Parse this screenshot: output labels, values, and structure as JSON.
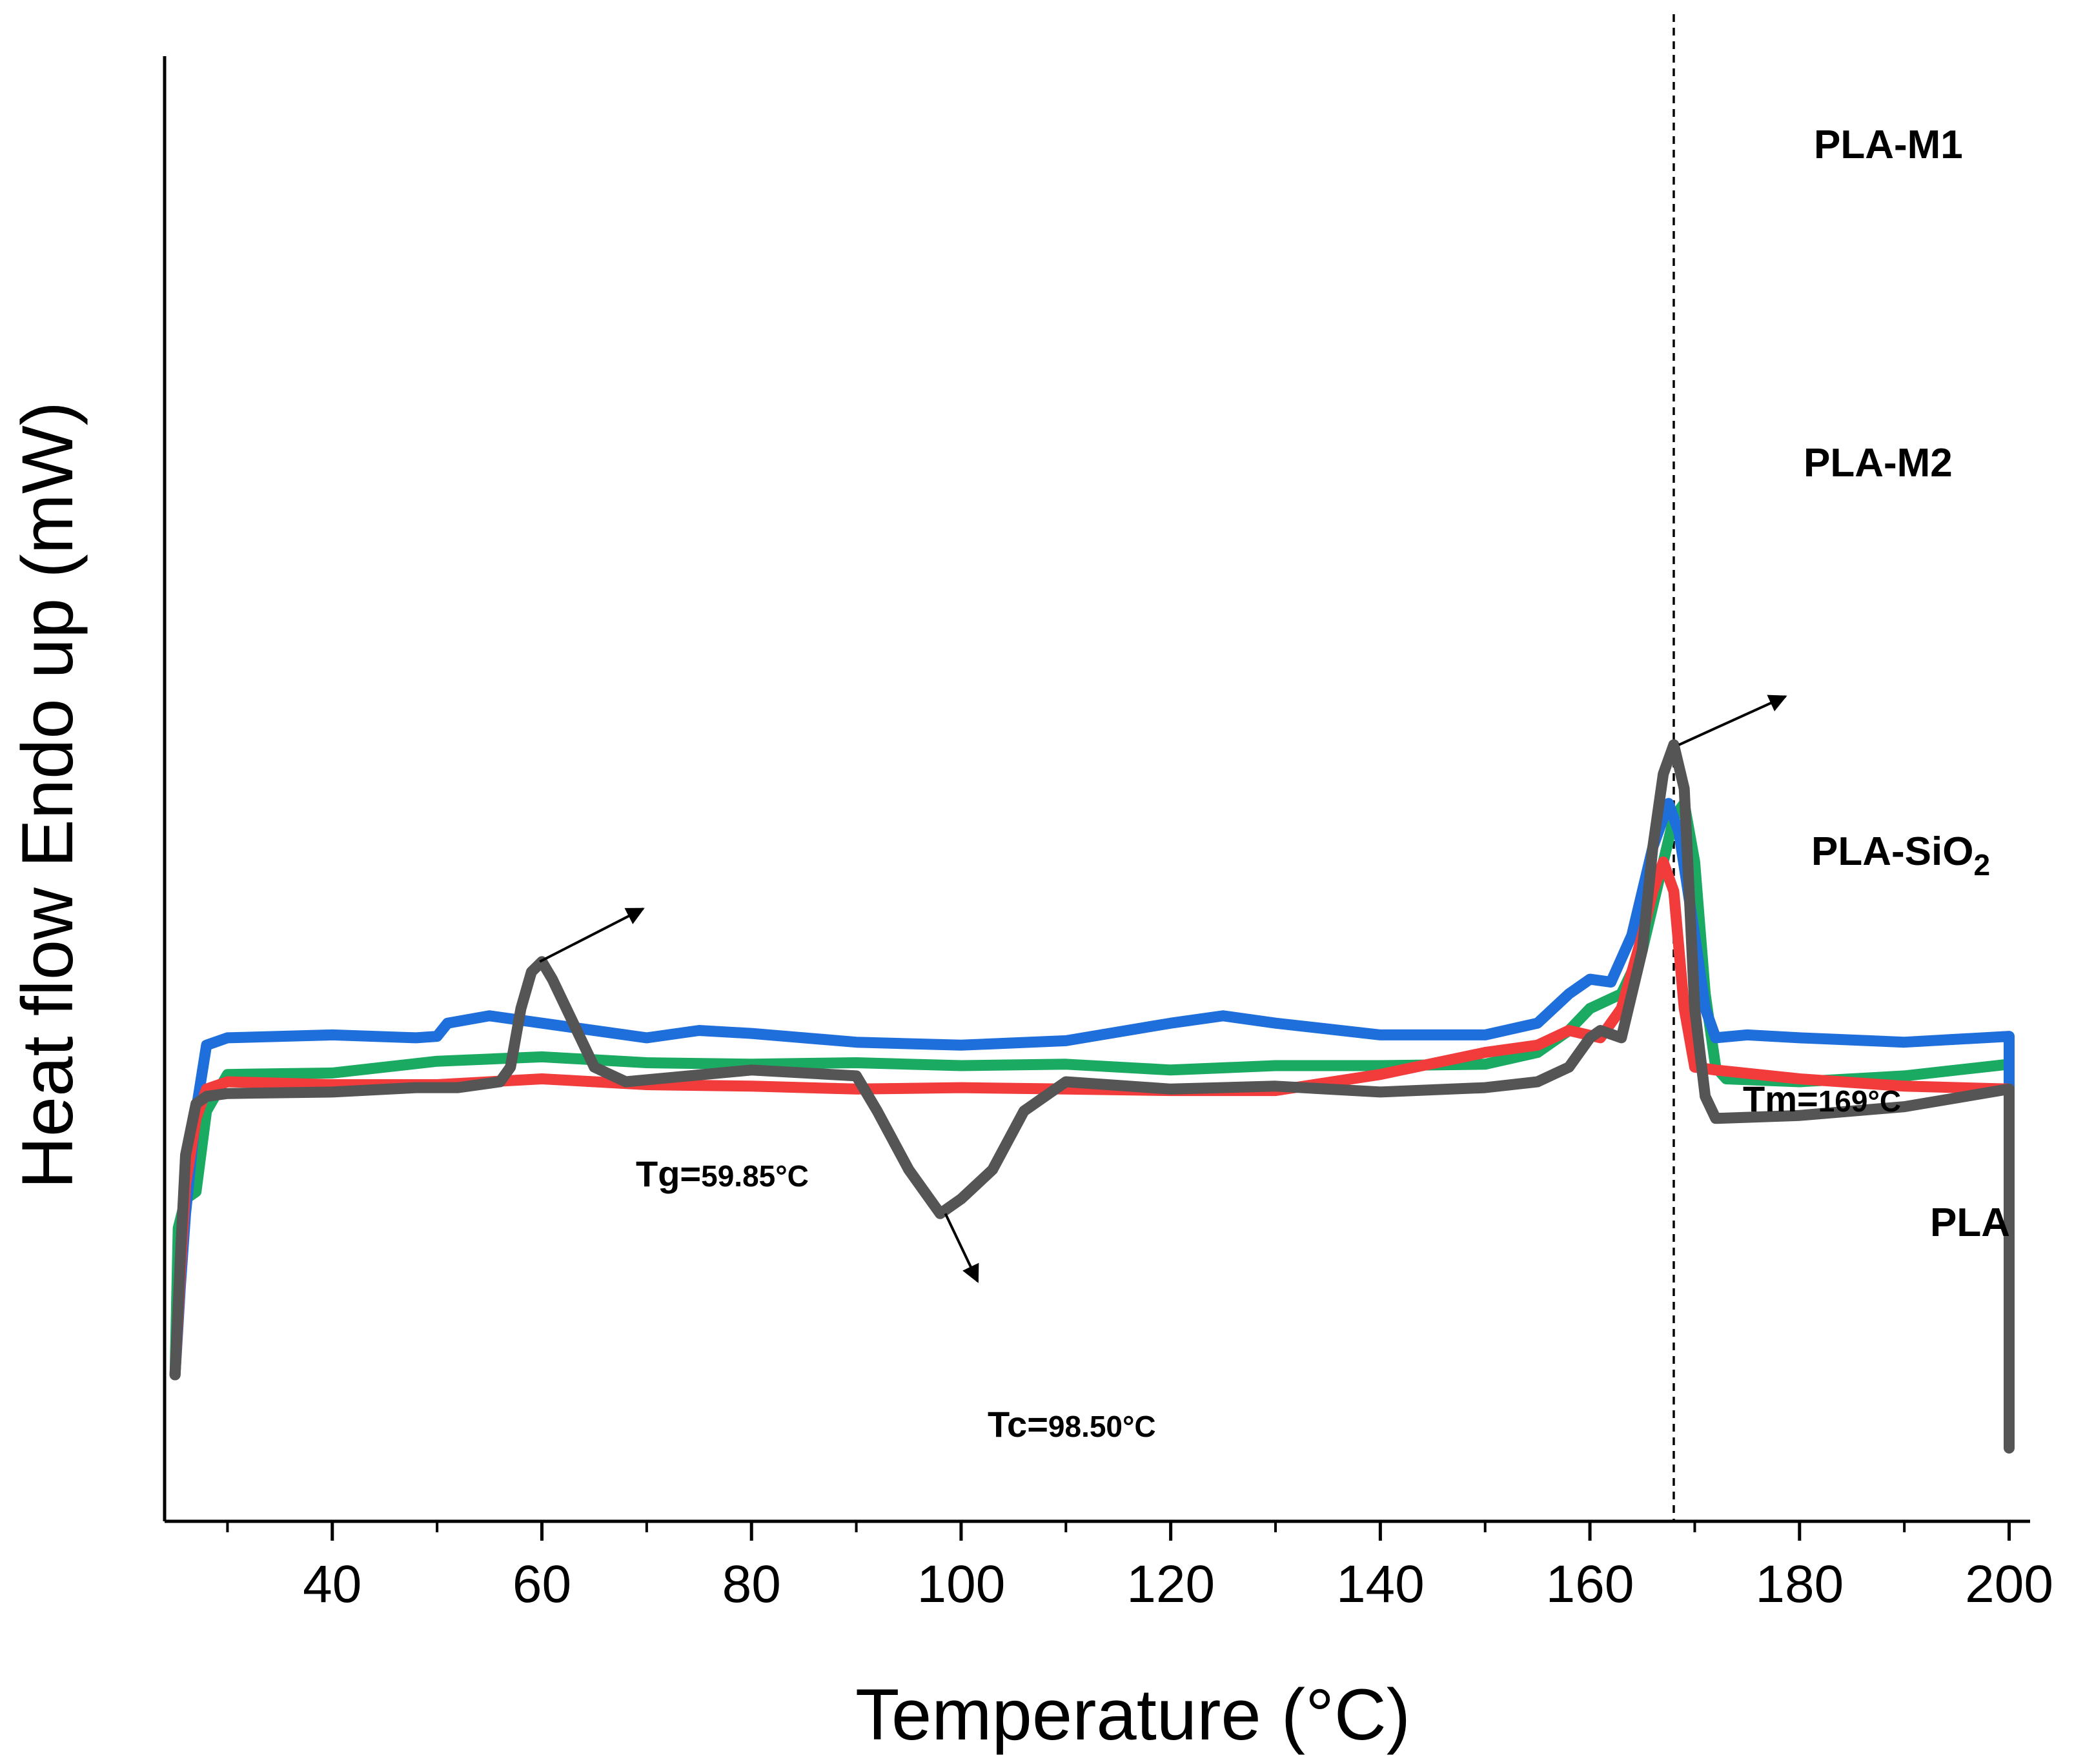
{
  "chart_data": {
    "type": "line",
    "title": "",
    "xlabel": "Temperature (°C)",
    "ylabel": "Heat flow Endo up (mW)",
    "xlim": [
      24,
      202
    ],
    "ylim": [
      0,
      100
    ],
    "x_ticks": [
      40,
      60,
      80,
      100,
      120,
      140,
      160,
      180,
      200
    ],
    "y_ticks_shown": false,
    "grid": false,
    "legend": "inline labels at right end of each curve",
    "reference_line": {
      "x": 168,
      "style": "dashed"
    },
    "series": [
      {
        "name": "PLA-M1",
        "color": "#1aaa62",
        "points": [
          [
            25,
            10
          ],
          [
            25.3,
            20
          ],
          [
            26,
            22
          ],
          [
            27,
            22.5
          ],
          [
            28,
            28
          ],
          [
            30,
            30.5
          ],
          [
            40,
            30.6
          ],
          [
            50,
            31.4
          ],
          [
            60,
            31.7
          ],
          [
            70,
            31.3
          ],
          [
            80,
            31.2
          ],
          [
            90,
            31.3
          ],
          [
            100,
            31.1
          ],
          [
            110,
            31.2
          ],
          [
            120,
            30.8
          ],
          [
            130,
            31.1
          ],
          [
            140,
            31.1
          ],
          [
            150,
            31.2
          ],
          [
            155,
            32
          ],
          [
            158,
            33.5
          ],
          [
            160,
            35
          ],
          [
            163,
            36
          ],
          [
            165,
            39
          ],
          [
            166,
            42
          ],
          [
            167,
            45
          ],
          [
            168,
            48
          ],
          [
            169,
            49
          ],
          [
            170,
            45
          ],
          [
            171,
            36
          ],
          [
            172,
            31
          ],
          [
            173,
            30.2
          ],
          [
            180,
            30
          ],
          [
            190,
            30.4
          ],
          [
            200,
            31.2
          ],
          [
            200,
            8.6
          ]
        ]
      },
      {
        "name": "PLA-M2",
        "color": "#1e6fdc",
        "points": [
          [
            25,
            10
          ],
          [
            25.5,
            16
          ],
          [
            26,
            21
          ],
          [
            27,
            28
          ],
          [
            28,
            32.5
          ],
          [
            30,
            33
          ],
          [
            40,
            33.2
          ],
          [
            48,
            33
          ],
          [
            50,
            33.1
          ],
          [
            51,
            34
          ],
          [
            55,
            34.5
          ],
          [
            60,
            34
          ],
          [
            70,
            33
          ],
          [
            75,
            33.5
          ],
          [
            80,
            33.3
          ],
          [
            90,
            32.7
          ],
          [
            100,
            32.5
          ],
          [
            110,
            32.8
          ],
          [
            120,
            34
          ],
          [
            125,
            34.5
          ],
          [
            130,
            34
          ],
          [
            140,
            33.2
          ],
          [
            150,
            33.2
          ],
          [
            155,
            34
          ],
          [
            158,
            36
          ],
          [
            160,
            37
          ],
          [
            162,
            36.8
          ],
          [
            164,
            40
          ],
          [
            166,
            46
          ],
          [
            167.5,
            49
          ],
          [
            168.5,
            47
          ],
          [
            170,
            40
          ],
          [
            171,
            35
          ],
          [
            172,
            33
          ],
          [
            175,
            33.2
          ],
          [
            180,
            33
          ],
          [
            190,
            32.7
          ],
          [
            200,
            33.1
          ],
          [
            200,
            8.5
          ]
        ]
      },
      {
        "name": "PLA-SiO2",
        "color": "#f23b3b",
        "points": [
          [
            25,
            10
          ],
          [
            25.5,
            17
          ],
          [
            26,
            23
          ],
          [
            27,
            27.5
          ],
          [
            28,
            29.5
          ],
          [
            30,
            30
          ],
          [
            40,
            29.8
          ],
          [
            50,
            29.8
          ],
          [
            60,
            30.2
          ],
          [
            70,
            29.8
          ],
          [
            80,
            29.7
          ],
          [
            90,
            29.5
          ],
          [
            100,
            29.6
          ],
          [
            110,
            29.5
          ],
          [
            120,
            29.4
          ],
          [
            130,
            29.4
          ],
          [
            140,
            30.5
          ],
          [
            150,
            32
          ],
          [
            155,
            32.5
          ],
          [
            158,
            33.5
          ],
          [
            161,
            33
          ],
          [
            163,
            35
          ],
          [
            165,
            40
          ],
          [
            166,
            43
          ],
          [
            167,
            45
          ],
          [
            168,
            43
          ],
          [
            169,
            35
          ],
          [
            170,
            31
          ],
          [
            172,
            30.8
          ],
          [
            180,
            30.2
          ],
          [
            190,
            29.7
          ],
          [
            200,
            29.5
          ],
          [
            200,
            8.5
          ]
        ]
      },
      {
        "name": "PLA",
        "color": "#555555",
        "points": [
          [
            25,
            10
          ],
          [
            25.5,
            18
          ],
          [
            26,
            25
          ],
          [
            27,
            28.5
          ],
          [
            28,
            29
          ],
          [
            30,
            29.2
          ],
          [
            40,
            29.3
          ],
          [
            48,
            29.6
          ],
          [
            52,
            29.6
          ],
          [
            56,
            30
          ],
          [
            57,
            31
          ],
          [
            58,
            35
          ],
          [
            59,
            37.5
          ],
          [
            60,
            38.2
          ],
          [
            61,
            37
          ],
          [
            63,
            34
          ],
          [
            65,
            31
          ],
          [
            68,
            30
          ],
          [
            80,
            30.8
          ],
          [
            90,
            30.4
          ],
          [
            92,
            28
          ],
          [
            95,
            24
          ],
          [
            98,
            21
          ],
          [
            100,
            22
          ],
          [
            103,
            24
          ],
          [
            106,
            28
          ],
          [
            110,
            30
          ],
          [
            120,
            29.5
          ],
          [
            130,
            29.7
          ],
          [
            140,
            29.3
          ],
          [
            150,
            29.6
          ],
          [
            155,
            30
          ],
          [
            158,
            31
          ],
          [
            160,
            33
          ],
          [
            161,
            33.5
          ],
          [
            163,
            33
          ],
          [
            165,
            39
          ],
          [
            166,
            46
          ],
          [
            167,
            51
          ],
          [
            168,
            53
          ],
          [
            169,
            50
          ],
          [
            170,
            35
          ],
          [
            171,
            29
          ],
          [
            172,
            27.5
          ],
          [
            180,
            27.7
          ],
          [
            190,
            28.3
          ],
          [
            200,
            29.5
          ],
          [
            200,
            5
          ]
        ]
      }
    ],
    "series_labels": [
      "PLA-M1",
      "PLA-M2",
      "PLA-SiO",
      "PLA"
    ],
    "series_label_subscript": "2",
    "annotations": [
      {
        "point": [
          59.8,
          38.2
        ],
        "big": "Tg=",
        "small": "59.85°C"
      },
      {
        "point": [
          98.5,
          21
        ],
        "big": "Tc=",
        "small": "98.50°C"
      },
      {
        "point": [
          168.5,
          53
        ],
        "big": "Tm=",
        "small": "169°C"
      }
    ]
  }
}
